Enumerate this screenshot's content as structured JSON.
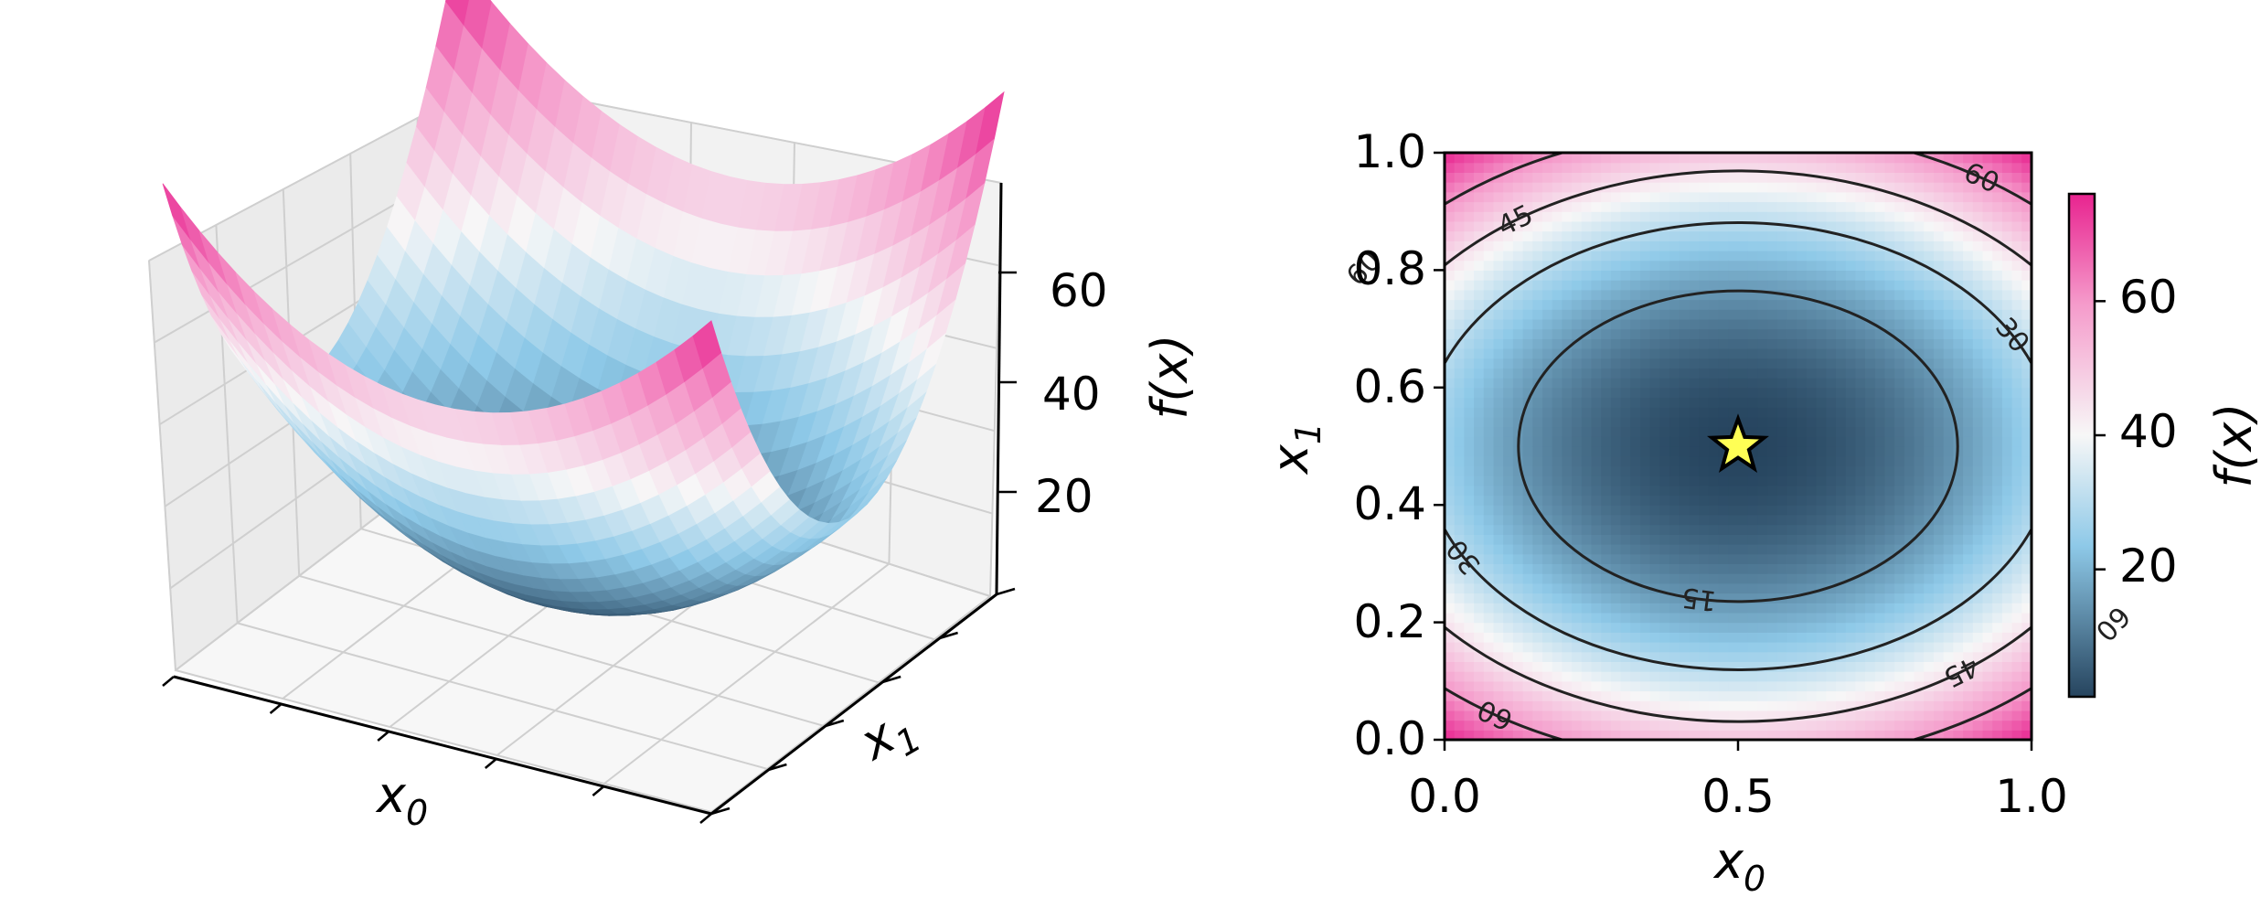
{
  "chart_data": [
    {
      "type": "surface3d",
      "function": "f(x) = 1 + 100*(x0-0.5)^2 + 200*(x1-0.5)^2",
      "x": [
        0,
        0.25,
        0.5,
        0.75,
        1.0
      ],
      "y": [
        0,
        0.25,
        0.5,
        0.75,
        1.0
      ],
      "z": [
        [
          76,
          38.5,
          26,
          38.5,
          76
        ],
        [
          57.25,
          19.75,
          7.25,
          19.75,
          57.25
        ],
        [
          51,
          13.5,
          1,
          13.5,
          51
        ],
        [
          57.25,
          19.75,
          7.25,
          19.75,
          57.25
        ],
        [
          76,
          38.5,
          26,
          38.5,
          76
        ]
      ],
      "xlabel": "x",
      "xlabel_sub": "0",
      "ylabel": "x",
      "ylabel_sub": "1",
      "zlabel": "f(x)",
      "zticks": [
        "20",
        "40",
        "60"
      ],
      "zlim": [
        1,
        76
      ],
      "colormap": [
        "#26445e",
        "#8ec9e8",
        "#f7f7f7",
        "#f59bcb",
        "#e8238f"
      ]
    },
    {
      "type": "contour",
      "xlim": [
        0,
        1
      ],
      "ylim": [
        0,
        1
      ],
      "xticks": [
        "0.0",
        "0.5",
        "1.0"
      ],
      "yticks": [
        "0.0",
        "0.2",
        "0.4",
        "0.6",
        "0.8",
        "1.0"
      ],
      "xlabel": "x",
      "xlabel_sub": "0",
      "ylabel": "x",
      "ylabel_sub": "1",
      "levels": [
        15,
        30,
        45,
        60
      ],
      "level_labels": [
        "15",
        "30",
        "45",
        "60"
      ],
      "minimum": {
        "x": 0.5,
        "y": 0.5,
        "marker": "star",
        "color": "#ffff55"
      },
      "colorbar": {
        "label": "f(x)",
        "ticks": [
          "20",
          "40",
          "60"
        ],
        "range": [
          1,
          76
        ]
      }
    }
  ]
}
